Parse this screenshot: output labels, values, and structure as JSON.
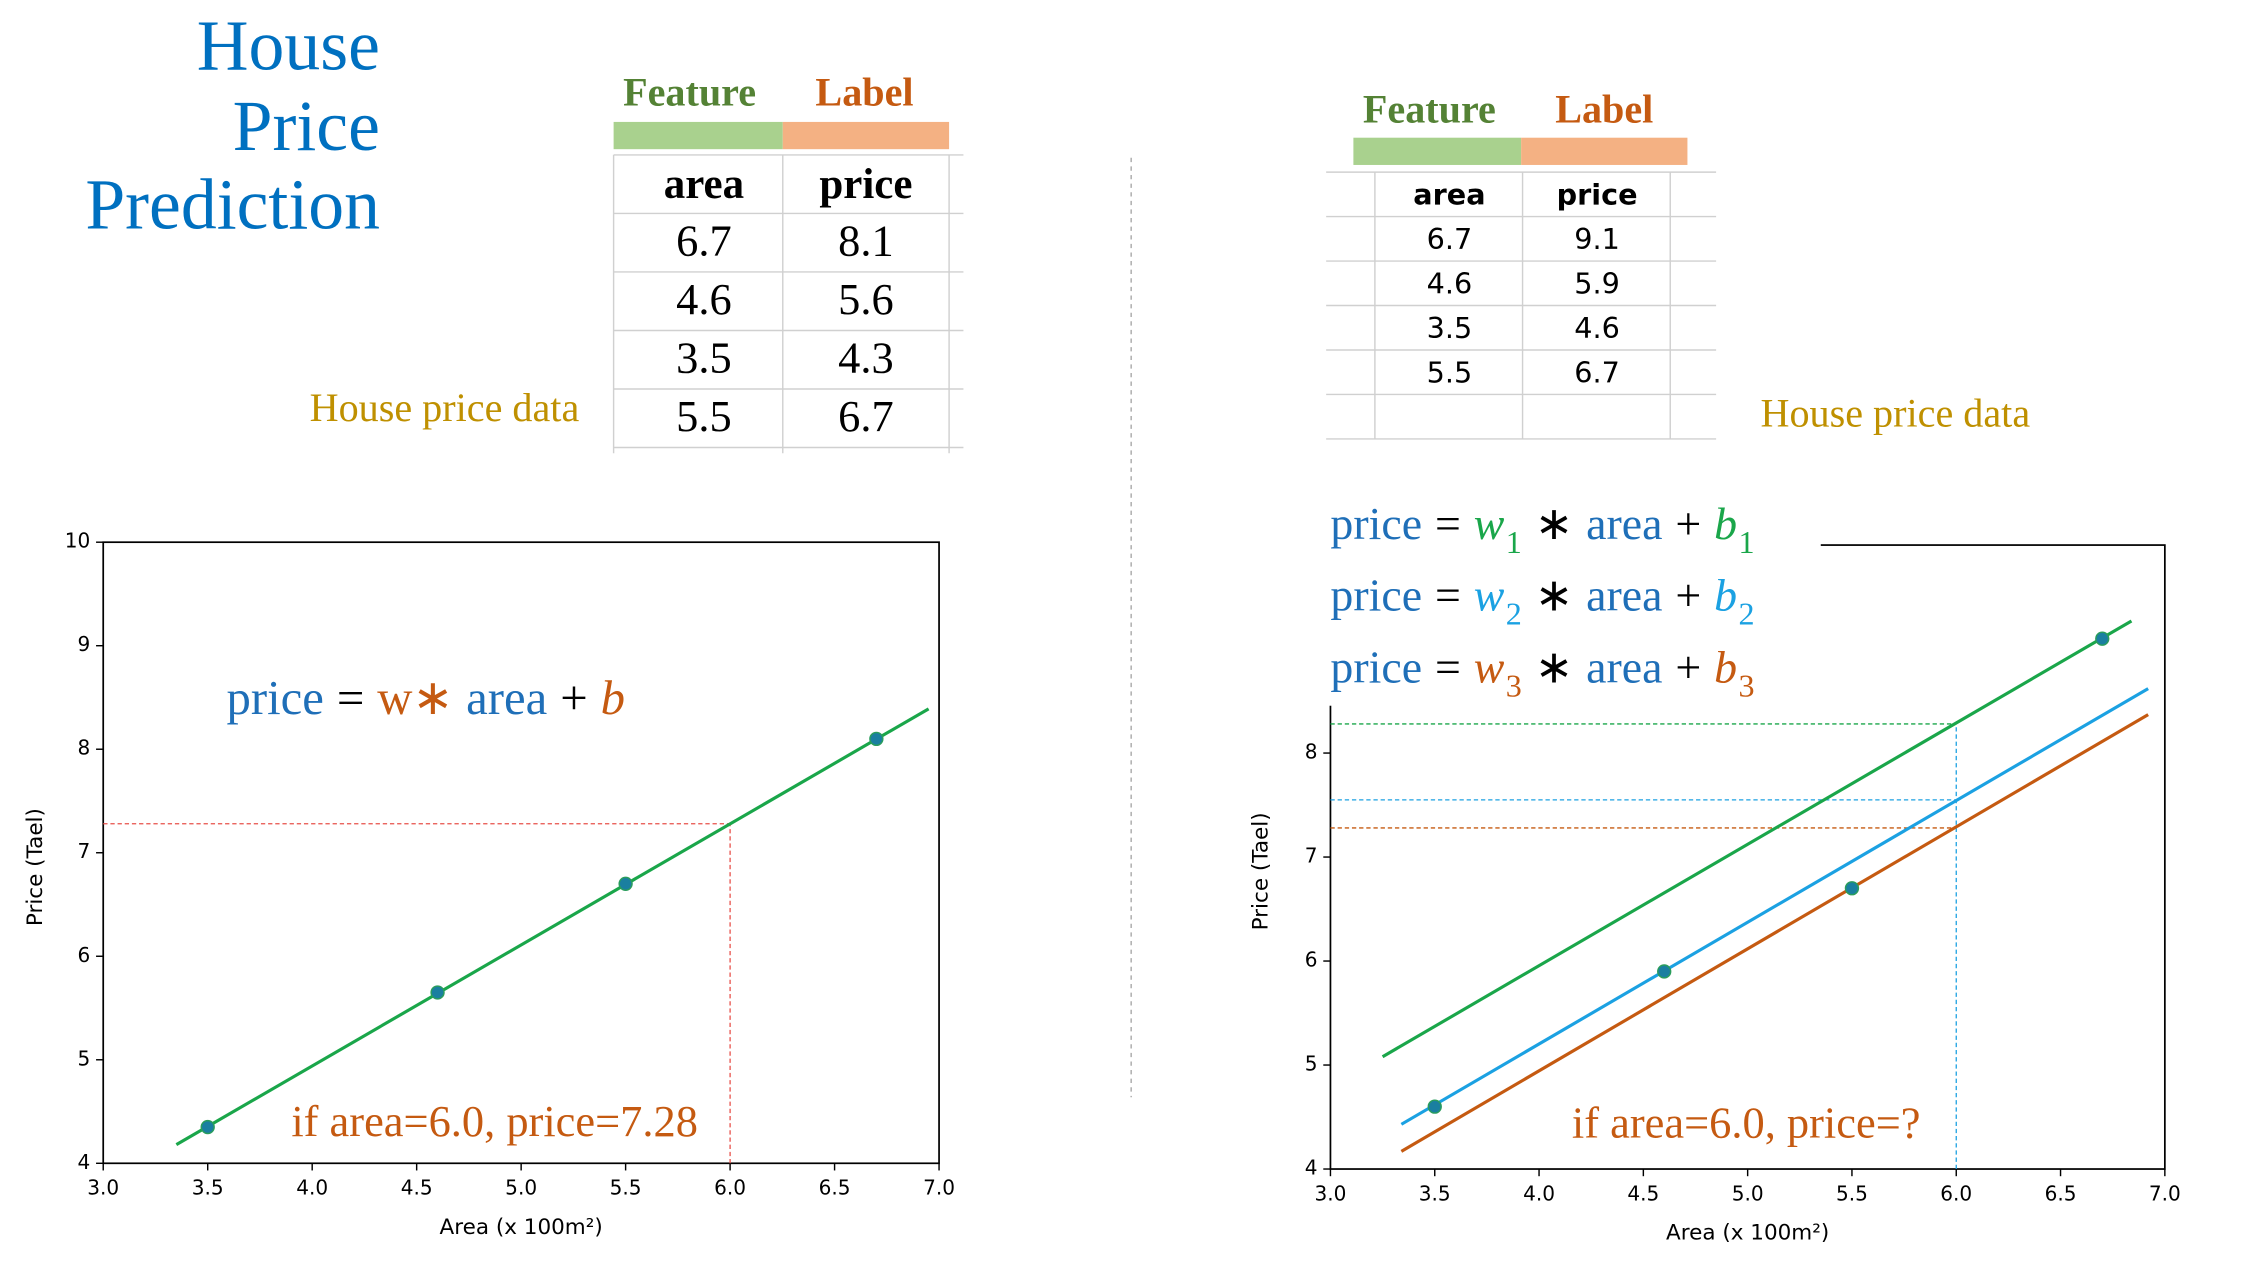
{
  "title": [
    "House",
    "Price",
    "Prediction"
  ],
  "left_table": {
    "groups": [
      "Feature",
      "Label"
    ],
    "columns": [
      "area",
      "price"
    ],
    "rows": [
      [
        "6.7",
        "8.1"
      ],
      [
        "4.6",
        "5.6"
      ],
      [
        "3.5",
        "4.3"
      ],
      [
        "5.5",
        "6.7"
      ]
    ],
    "caption": "House price data"
  },
  "right_table": {
    "groups": [
      "Feature",
      "Label"
    ],
    "columns": [
      "area",
      "price"
    ],
    "rows": [
      [
        "6.7",
        "9.1"
      ],
      [
        "4.6",
        "5.9"
      ],
      [
        "3.5",
        "4.6"
      ],
      [
        "5.5",
        "6.7"
      ]
    ],
    "caption": "House price data"
  },
  "chart_data": [
    {
      "type": "scatter",
      "x_label": "Area (x 100m²)",
      "y_label": "Price (Tael)",
      "xlim": [
        3.0,
        7.0
      ],
      "ylim": [
        4,
        10
      ],
      "xticks": [
        {
          "value": 3,
          "label": "3.0"
        },
        {
          "value": 3.5,
          "label": "3.5"
        },
        {
          "value": 4,
          "label": "4.0"
        },
        {
          "value": 4.5,
          "label": "4.5"
        },
        {
          "value": 5,
          "label": "5.0"
        },
        {
          "value": 5.5,
          "label": "5.5"
        },
        {
          "value": 6,
          "label": "6.0"
        },
        {
          "value": 6.5,
          "label": "6.5"
        },
        {
          "value": 7,
          "label": "7.0"
        }
      ],
      "yticks": [
        4,
        5,
        6,
        7,
        8,
        9,
        10
      ],
      "points": {
        "x": [
          3.5,
          4.6,
          5.5,
          6.7
        ],
        "values": [
          4.35,
          5.65,
          6.7,
          8.1
        ],
        "color": "#1a7fa0"
      },
      "series": [
        {
          "x": [
            3.35,
            6.95
          ],
          "values": [
            4.18,
            8.39
          ],
          "color": "#1aa64a"
        }
      ],
      "guides": [
        {
          "x": 6.0,
          "y": 7.28,
          "color": "#e8504a"
        }
      ],
      "equations": [
        [
          "price",
          "=",
          "w∗",
          "area",
          "+",
          "b"
        ]
      ],
      "annotation": "if area=6.0, price=7.28"
    },
    {
      "type": "scatter",
      "x_label": "Area (x 100m²)",
      "y_label": "Price (Tael)",
      "xlim": [
        3.0,
        7.0
      ],
      "ylim": [
        4,
        10
      ],
      "xticks": [
        {
          "value": 3,
          "label": "3.0"
        },
        {
          "value": 3.5,
          "label": "3.5"
        },
        {
          "value": 4,
          "label": "4.0"
        },
        {
          "value": 4.5,
          "label": "4.5"
        },
        {
          "value": 5,
          "label": "5.0"
        },
        {
          "value": 5.5,
          "label": "5.5"
        },
        {
          "value": 6,
          "label": "6.0"
        },
        {
          "value": 6.5,
          "label": "6.5"
        },
        {
          "value": 7,
          "label": "7.0"
        }
      ],
      "yticks": [
        4,
        5,
        6,
        7,
        8
      ],
      "points": {
        "x": [
          3.5,
          4.6,
          5.5,
          6.7
        ],
        "values": [
          4.6,
          5.9,
          6.7,
          9.1
        ],
        "color": "#1a7fa0"
      },
      "series": [
        {
          "x": [
            3.25,
            6.84
          ],
          "values": [
            5.08,
            9.27
          ],
          "color": "#1aa64a"
        },
        {
          "x": [
            3.34,
            6.92
          ],
          "values": [
            4.43,
            8.62
          ],
          "color": "#1ba1e2"
        },
        {
          "x": [
            3.34,
            6.92
          ],
          "values": [
            4.17,
            8.37
          ],
          "color": "#c55a11"
        }
      ],
      "guides": [
        {
          "x": 6.0,
          "y": 8.28,
          "color": "#1aa64a"
        },
        {
          "x": 6.0,
          "y": 7.55,
          "color": "#1ba1e2"
        },
        {
          "x": 6.0,
          "y": 7.28,
          "color": "#c55a11"
        }
      ],
      "equations": [
        [
          "price",
          "=",
          "w",
          "1",
          "∗",
          "area",
          "+",
          "b",
          "1"
        ],
        [
          "price",
          "=",
          "w",
          "2",
          "∗",
          "area",
          "+",
          "b",
          "2"
        ],
        [
          "price",
          "=",
          "w",
          "3",
          "∗",
          "area",
          "+",
          "b",
          "3"
        ]
      ],
      "annotation": "if area=6.0, price=?"
    }
  ]
}
